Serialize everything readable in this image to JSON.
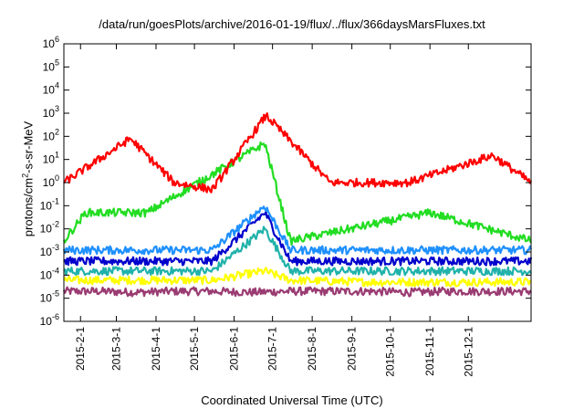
{
  "chart_data": {
    "type": "line",
    "title": "/data/run/goesPlots/archive/2016-01-19/flux/../flux/366daysMarsFluxes.txt",
    "xlabel": "Coordinated Universal Time (UTC)",
    "ylabel": {
      "pre": "protons/cm",
      "sup": "2",
      "post": "-s-sr-MeV"
    },
    "x_range": [
      "2015-01-19",
      "2016-01-19"
    ],
    "ylim": [
      1e-06,
      1000000.0
    ],
    "yscale": "log",
    "grid": false,
    "legend": "none",
    "x_ticks": [
      "2015-2-1",
      "2015-3-1",
      "2015-4-1",
      "2015-5-1",
      "2015-6-1",
      "2015-7-1",
      "2015-8-1",
      "2015-9-1",
      "2015-10-1",
      "2015-11-1",
      "2015-12-1"
    ],
    "y_ticks": [
      {
        "base": "10",
        "exp": "-6",
        "value": 1e-06
      },
      {
        "base": "10",
        "exp": "-5",
        "value": 1e-05
      },
      {
        "base": "10",
        "exp": "-4",
        "value": 0.0001
      },
      {
        "base": "10",
        "exp": "-3",
        "value": 0.001
      },
      {
        "base": "10",
        "exp": "-2",
        "value": 0.01
      },
      {
        "base": "10",
        "exp": "-1",
        "value": 0.1
      },
      {
        "base": "10",
        "exp": "0",
        "value": 1
      },
      {
        "base": "10",
        "exp": "1",
        "value": 10
      },
      {
        "base": "10",
        "exp": "2",
        "value": 100
      },
      {
        "base": "10",
        "exp": "3",
        "value": 1000
      },
      {
        "base": "10",
        "exp": "4",
        "value": 10000
      },
      {
        "base": "10",
        "exp": "5",
        "value": 100000
      },
      {
        "base": "10",
        "exp": "6",
        "value": 1000000
      }
    ],
    "series": [
      {
        "color": "#9a3b72",
        "values": [
          {
            "x": "2015-01-19",
            "y": 2e-05
          },
          {
            "x": "2015-02-15",
            "y": 2e-05
          },
          {
            "x": "2015-03-15",
            "y": 1.8e-05
          },
          {
            "x": "2015-04-15",
            "y": 2e-05
          },
          {
            "x": "2015-05-15",
            "y": 2e-05
          },
          {
            "x": "2015-06-15",
            "y": 1.8e-05
          },
          {
            "x": "2015-07-15",
            "y": 2e-05
          },
          {
            "x": "2015-08-15",
            "y": 2e-05
          },
          {
            "x": "2015-09-15",
            "y": 2e-05
          },
          {
            "x": "2015-10-15",
            "y": 1.8e-05
          },
          {
            "x": "2015-11-15",
            "y": 2e-05
          },
          {
            "x": "2015-12-15",
            "y": 2e-05
          },
          {
            "x": "2016-01-19",
            "y": 2e-05
          }
        ]
      },
      {
        "color": "#ffff00",
        "values": [
          {
            "x": "2015-01-19",
            "y": 6e-05
          },
          {
            "x": "2015-03-15",
            "y": 6e-05
          },
          {
            "x": "2015-05-15",
            "y": 6e-05
          },
          {
            "x": "2015-06-25",
            "y": 0.00015
          },
          {
            "x": "2015-07-15",
            "y": 6e-05
          },
          {
            "x": "2015-09-15",
            "y": 5e-05
          },
          {
            "x": "2015-11-15",
            "y": 5e-05
          },
          {
            "x": "2016-01-19",
            "y": 5e-05
          }
        ]
      },
      {
        "color": "#20b2aa",
        "values": [
          {
            "x": "2015-01-19",
            "y": 0.00015
          },
          {
            "x": "2015-03-15",
            "y": 0.00015
          },
          {
            "x": "2015-05-15",
            "y": 0.00015
          },
          {
            "x": "2015-06-25",
            "y": 0.01
          },
          {
            "x": "2015-07-15",
            "y": 0.00015
          },
          {
            "x": "2015-09-15",
            "y": 0.00015
          },
          {
            "x": "2015-11-15",
            "y": 0.00015
          },
          {
            "x": "2016-01-19",
            "y": 0.00015
          }
        ]
      },
      {
        "color": "#0000cc",
        "values": [
          {
            "x": "2015-01-19",
            "y": 0.0004
          },
          {
            "x": "2015-03-15",
            "y": 0.0004
          },
          {
            "x": "2015-05-15",
            "y": 0.0004
          },
          {
            "x": "2015-06-25",
            "y": 0.05
          },
          {
            "x": "2015-07-15",
            "y": 0.0004
          },
          {
            "x": "2015-09-15",
            "y": 0.0004
          },
          {
            "x": "2015-11-15",
            "y": 0.0004
          },
          {
            "x": "2016-01-19",
            "y": 0.0004
          }
        ]
      },
      {
        "color": "#1e90ff",
        "values": [
          {
            "x": "2015-01-19",
            "y": 0.0012
          },
          {
            "x": "2015-03-15",
            "y": 0.0012
          },
          {
            "x": "2015-05-15",
            "y": 0.0012
          },
          {
            "x": "2015-06-25",
            "y": 0.1
          },
          {
            "x": "2015-07-15",
            "y": 0.0012
          },
          {
            "x": "2015-09-15",
            "y": 0.0012
          },
          {
            "x": "2015-11-15",
            "y": 0.0012
          },
          {
            "x": "2016-01-19",
            "y": 0.0012
          }
        ]
      },
      {
        "color": "#22dd22",
        "values": [
          {
            "x": "2015-01-19",
            "y": 0.003
          },
          {
            "x": "2015-02-05",
            "y": 0.05
          },
          {
            "x": "2015-03-10",
            "y": 0.05
          },
          {
            "x": "2015-03-25",
            "y": 0.05
          },
          {
            "x": "2015-06-25",
            "y": 50
          },
          {
            "x": "2015-07-15",
            "y": 0.003
          },
          {
            "x": "2015-11-01",
            "y": 0.05
          },
          {
            "x": "2016-01-19",
            "y": 0.003
          }
        ]
      },
      {
        "color": "#ff0000",
        "values": [
          {
            "x": "2015-01-19",
            "y": 1.0
          },
          {
            "x": "2015-03-12",
            "y": 80
          },
          {
            "x": "2015-04-15",
            "y": 1.0
          },
          {
            "x": "2015-05-15",
            "y": 0.5
          },
          {
            "x": "2015-06-26",
            "y": 800
          },
          {
            "x": "2015-08-15",
            "y": 1.0
          },
          {
            "x": "2015-10-15",
            "y": 1.0
          },
          {
            "x": "2015-12-20",
            "y": 15
          },
          {
            "x": "2016-01-19",
            "y": 1.0
          }
        ]
      }
    ]
  }
}
